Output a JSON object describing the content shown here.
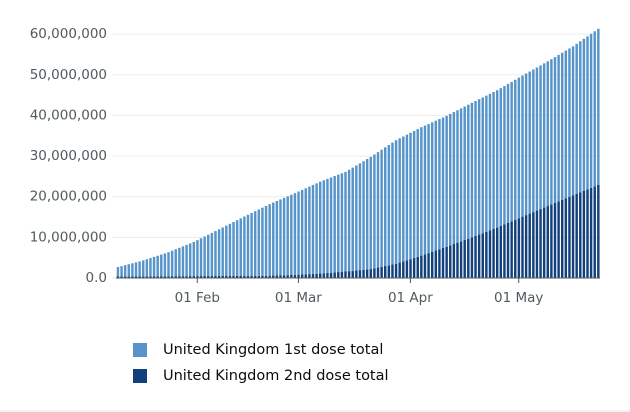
{
  "chart_data": {
    "type": "bar",
    "stacked": true,
    "grid": true,
    "categories": [
      null,
      null,
      null,
      null,
      null,
      null,
      null,
      null,
      null,
      null,
      null,
      null,
      null,
      null,
      null,
      null,
      null,
      null,
      null,
      null,
      null,
      null,
      "01 Feb",
      null,
      null,
      null,
      null,
      null,
      null,
      null,
      null,
      null,
      null,
      null,
      null,
      null,
      null,
      null,
      null,
      null,
      null,
      null,
      null,
      null,
      null,
      null,
      null,
      null,
      null,
      null,
      "01 Mar",
      null,
      null,
      null,
      null,
      null,
      null,
      null,
      null,
      null,
      null,
      null,
      null,
      null,
      null,
      null,
      null,
      null,
      null,
      null,
      null,
      null,
      null,
      null,
      null,
      null,
      null,
      null,
      null,
      null,
      null,
      "01 Apr",
      null,
      null,
      null,
      null,
      null,
      null,
      null,
      null,
      null,
      null,
      null,
      null,
      null,
      null,
      null,
      null,
      null,
      null,
      null,
      null,
      null,
      null,
      null,
      null,
      null,
      null,
      null,
      null,
      null,
      "01 May",
      null,
      null,
      null,
      null,
      null,
      null,
      null,
      null,
      null,
      null,
      null,
      null,
      null,
      null,
      null,
      null,
      null,
      null,
      null,
      null,
      null,
      null
    ],
    "series": [
      {
        "name": "United Kingdom 1st dose total",
        "color": "#5694ca",
        "values": [
          2300000,
          2530000,
          2760000,
          2990000,
          3210000,
          3440000,
          3670000,
          3900000,
          4190000,
          4470000,
          4760000,
          5040000,
          5330000,
          5610000,
          5900000,
          6260000,
          6610000,
          6970000,
          7330000,
          7690000,
          8040000,
          8400000,
          8840000,
          9290000,
          9730000,
          10170000,
          10610000,
          11060000,
          11500000,
          11940000,
          12390000,
          12830000,
          13270000,
          13710000,
          14160000,
          14600000,
          15030000,
          15460000,
          15890000,
          16310000,
          16740000,
          17170000,
          17600000,
          17960000,
          18310000,
          18670000,
          19030000,
          19390000,
          19740000,
          20100000,
          20460000,
          20810000,
          21170000,
          21530000,
          21890000,
          22240000,
          22600000,
          22870000,
          23140000,
          23410000,
          23690000,
          23960000,
          24230000,
          24500000,
          24940000,
          25390000,
          25830000,
          26270000,
          26710000,
          27160000,
          27600000,
          28000000,
          28400000,
          28800000,
          29200000,
          29600000,
          30000000,
          30400000,
          30570000,
          30740000,
          30910000,
          31090000,
          31260000,
          31430000,
          31600000,
          31690000,
          31770000,
          31860000,
          31940000,
          32030000,
          32110000,
          32200000,
          32330000,
          32460000,
          32590000,
          32710000,
          32840000,
          32970000,
          33100000,
          33200000,
          33300000,
          33400000,
          33500000,
          33600000,
          33700000,
          33800000,
          33930000,
          34060000,
          34190000,
          34310000,
          34440000,
          34570000,
          34700000,
          34830000,
          34960000,
          35090000,
          35210000,
          35340000,
          35470000,
          35600000,
          35760000,
          35910000,
          36070000,
          36230000,
          36390000,
          36540000,
          36700000,
          36940000,
          37190000,
          37430000,
          37670000,
          37910000,
          38160000,
          38400000
        ]
      },
      {
        "name": "United Kingdom 2nd dose total",
        "color": "#12407c",
        "values": [
          390000,
          390000,
          400000,
          400000,
          410000,
          410000,
          410000,
          420000,
          420000,
          430000,
          430000,
          440000,
          440000,
          440000,
          450000,
          450000,
          460000,
          460000,
          460000,
          460000,
          470000,
          470000,
          470000,
          480000,
          480000,
          480000,
          480000,
          490000,
          490000,
          490000,
          500000,
          500000,
          510000,
          510000,
          510000,
          520000,
          530000,
          530000,
          540000,
          550000,
          560000,
          560000,
          570000,
          600000,
          630000,
          660000,
          680000,
          710000,
          740000,
          770000,
          820000,
          860000,
          910000,
          960000,
          1010000,
          1050000,
          1100000,
          1170000,
          1240000,
          1310000,
          1390000,
          1460000,
          1530000,
          1600000,
          1690000,
          1770000,
          1860000,
          1940000,
          2030000,
          2110000,
          2200000,
          2390000,
          2570000,
          2760000,
          2940000,
          3130000,
          3310000,
          3500000,
          3790000,
          4070000,
          4360000,
          4640000,
          4930000,
          5210000,
          5500000,
          5810000,
          6130000,
          6440000,
          6760000,
          7070000,
          7390000,
          7700000,
          8030000,
          8360000,
          8690000,
          9010000,
          9340000,
          9670000,
          10000000,
          10340000,
          10690000,
          11030000,
          11370000,
          11710000,
          12060000,
          12400000,
          12790000,
          13170000,
          13560000,
          13940000,
          14330000,
          14710000,
          15100000,
          15470000,
          15840000,
          16210000,
          16590000,
          16960000,
          17330000,
          17700000,
          18070000,
          18440000,
          18810000,
          19190000,
          19560000,
          19930000,
          20300000,
          20670000,
          21040000,
          21410000,
          21790000,
          22160000,
          22530000,
          22900000
        ]
      }
    ],
    "ylim": [
      0,
      62000000
    ],
    "yticks": [
      {
        "value": 0,
        "label": "0.0"
      },
      {
        "value": 10000000,
        "label": "10,000,000"
      },
      {
        "value": 20000000,
        "label": "20,000,000"
      },
      {
        "value": 30000000,
        "label": "30,000,000"
      },
      {
        "value": 40000000,
        "label": "40,000,000"
      },
      {
        "value": 50000000,
        "label": "50,000,000"
      },
      {
        "value": 60000000,
        "label": "60,000,000"
      }
    ]
  }
}
